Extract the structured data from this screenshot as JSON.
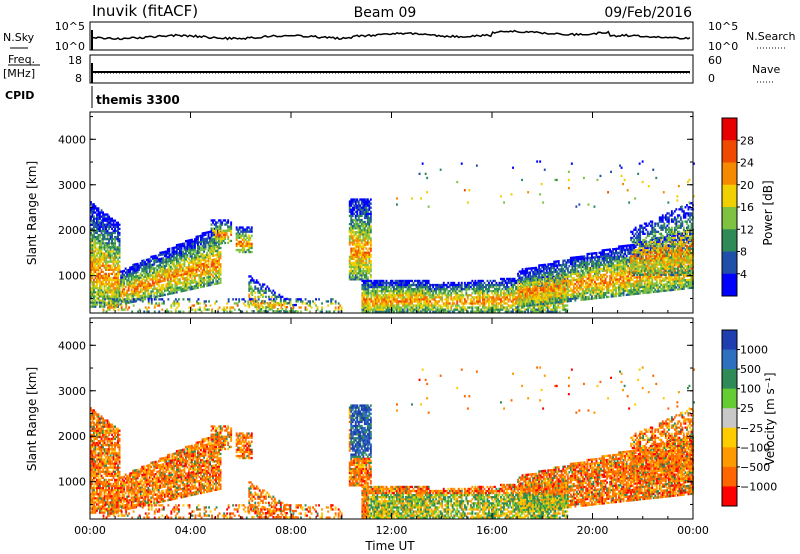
{
  "header": {
    "station": "Inuvik (fitACF)",
    "beam": "Beam 09",
    "date": "09/Feb/2016"
  },
  "top_panels": {
    "nsky_label": "N.Sky",
    "nsky_ticks": [
      "10^5",
      "10^0"
    ],
    "nsearch_label": "N.Search",
    "nsearch_ticks": [
      "10^5",
      "10^0"
    ],
    "freq_label": "Freq.",
    "freq_unit": "[MHz]",
    "freq_ticks": [
      "18",
      "8"
    ],
    "nave_label": "Nave",
    "nave_ticks": [
      "60",
      "0"
    ],
    "cpid_label": "CPID",
    "cpid_value": "themis 3300"
  },
  "chart_data": [
    {
      "type": "heatmap",
      "name": "power",
      "ylabel": "Slant Range [km]",
      "xlabel": "",
      "ylim": [
        180,
        4600
      ],
      "yticks": [
        "1000",
        "2000",
        "3000",
        "4000"
      ],
      "xlim": [
        0,
        24
      ],
      "colorbar_label": "Power [dB]",
      "colorbar_ticks": [
        "4",
        "8",
        "12",
        "16",
        "20",
        "24",
        "28"
      ],
      "colorbar_colors": [
        "#0000ff",
        "#1f4fa8",
        "#2e8b57",
        "#7fc241",
        "#f0d000",
        "#f58a00",
        "#f04a00",
        "#e60000"
      ]
    },
    {
      "type": "heatmap",
      "name": "velocity",
      "ylabel": "Slant Range [km]",
      "xlabel": "Time UT",
      "ylim": [
        180,
        4600
      ],
      "yticks": [
        "1000",
        "2000",
        "3000",
        "4000"
      ],
      "xlim": [
        0,
        24
      ],
      "xticks": [
        "00:00",
        "04:00",
        "08:00",
        "12:00",
        "16:00",
        "20:00",
        "00:00"
      ],
      "colorbar_label": "Velocity [m s⁻¹]",
      "colorbar_ticks": [
        "1000",
        "500",
        "100",
        "25",
        "−25",
        "−100",
        "−500",
        "−1000"
      ],
      "colorbar_colors": [
        "#1f3fb0",
        "#2f6fbf",
        "#2e8b57",
        "#66cc33",
        "#c8c8c8",
        "#ffcc00",
        "#ff9900",
        "#ff6600",
        "#ff0000"
      ]
    }
  ]
}
